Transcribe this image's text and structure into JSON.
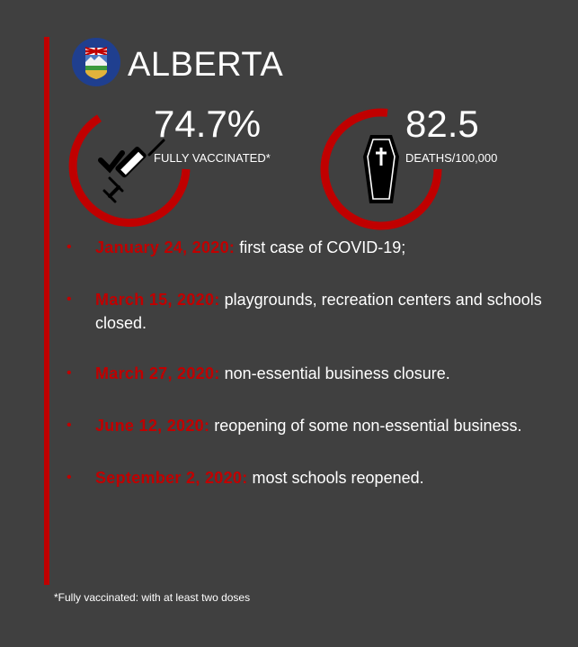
{
  "header": {
    "province": "ALBERTA"
  },
  "stats": {
    "vaccinated": {
      "value": "74.7%",
      "label": "FULLY VACCINATED*",
      "icon": "syringe-check-icon"
    },
    "deaths": {
      "value": "82.5",
      "label": "DEATHS/100,000",
      "icon": "coffin-icon"
    }
  },
  "timeline": [
    {
      "date": "January 24, 2020:",
      "text": "first case of COVID-19;"
    },
    {
      "date": "March 15, 2020:",
      "text": "playgrounds, recreation centers and schools closed."
    },
    {
      "date": "March 27, 2020:",
      "text": "non-essential business closure."
    },
    {
      "date": "June 12, 2020:",
      "text": "reopening of some non-essential business."
    },
    {
      "date": "September 2, 2020:",
      "text": "most schools reopened."
    }
  ],
  "footnote": "*Fully vaccinated: with at least two doses",
  "colors": {
    "accent": "#c00000",
    "background": "#404040",
    "text": "#ffffff"
  }
}
